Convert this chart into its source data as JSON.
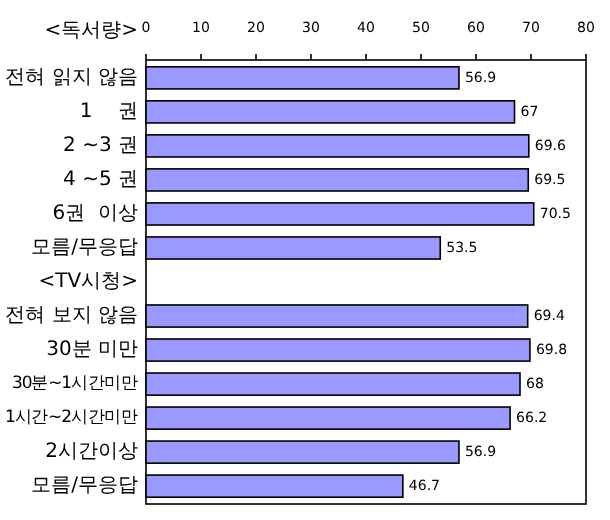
{
  "chart_data": {
    "type": "bar",
    "orientation": "horizontal",
    "annotations": [
      "<독서량>"
    ],
    "categories": [
      "전혀 읽지 않음",
      "1    권",
      "2 ~3 권",
      "4 ~5 권",
      "6권  이상",
      "모름/무응답",
      "<TV시청>",
      "전혀 보지 않음",
      "30분 미만",
      "30분~1시간미만",
      "1시간~2시간미만",
      "2시간이상",
      "모름/무응답"
    ],
    "values": [
      56.9,
      67,
      69.6,
      69.5,
      70.5,
      53.5,
      null,
      69.4,
      69.8,
      68,
      66.2,
      56.9,
      46.7
    ],
    "color": "#9999ff",
    "xlim": [
      0,
      80
    ],
    "xticks": [
      0,
      10,
      20,
      30,
      40,
      50,
      60,
      70,
      80
    ],
    "data_labels": true
  }
}
